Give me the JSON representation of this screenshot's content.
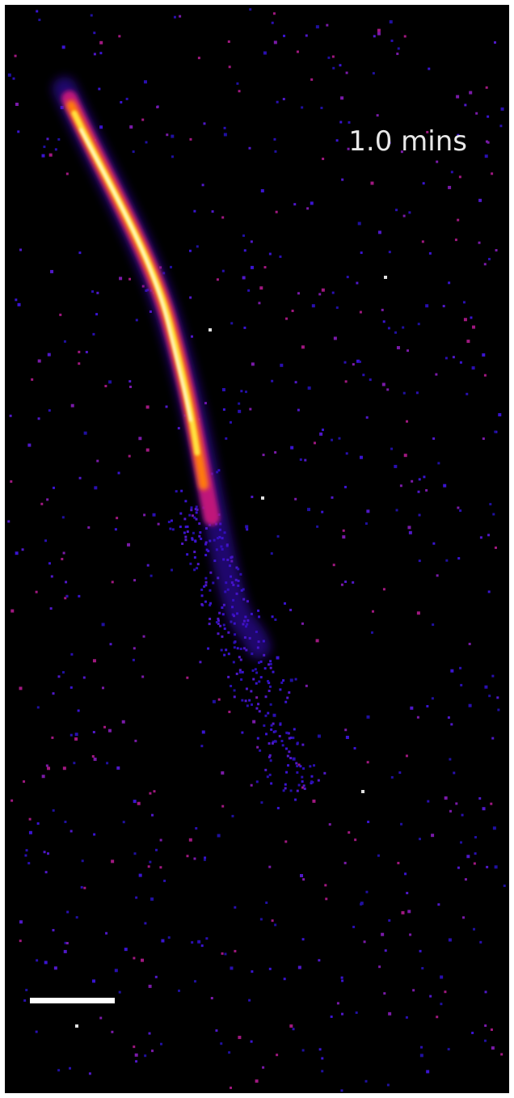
{
  "image": {
    "timestamp": "1.0 mins"
  }
}
